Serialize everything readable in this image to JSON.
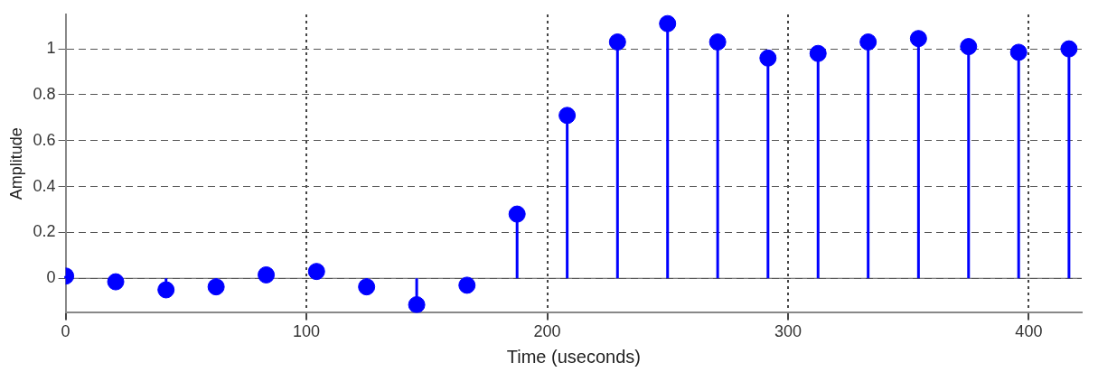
{
  "chart_data": {
    "type": "lollipop",
    "xlabel": "Time (useconds)",
    "ylabel": "Amplitude",
    "x": [
      0,
      20.8,
      41.7,
      62.5,
      83.3,
      104.2,
      125,
      145.8,
      166.7,
      187.5,
      208.3,
      229.2,
      250,
      270.8,
      291.7,
      312.5,
      333.3,
      354.2,
      375,
      395.8,
      416.7
    ],
    "series": [
      {
        "color": "#0000ff",
        "values": [
          0.01,
          -0.015,
          -0.05,
          -0.037,
          0.015,
          0.03,
          -0.037,
          -0.115,
          -0.03,
          0.28,
          0.71,
          1.03,
          1.11,
          1.03,
          0.96,
          0.98,
          1.03,
          1.045,
          1.01,
          0.985,
          1.0
        ]
      }
    ],
    "xlim": [
      0,
      422
    ],
    "ylim": [
      -0.15,
      1.15
    ],
    "xticks": [
      0,
      100,
      200,
      300,
      400
    ],
    "yticks": [
      0,
      0.2,
      0.4,
      0.6,
      0.8,
      1
    ],
    "grid": true,
    "marker": "circle",
    "legend": false
  }
}
